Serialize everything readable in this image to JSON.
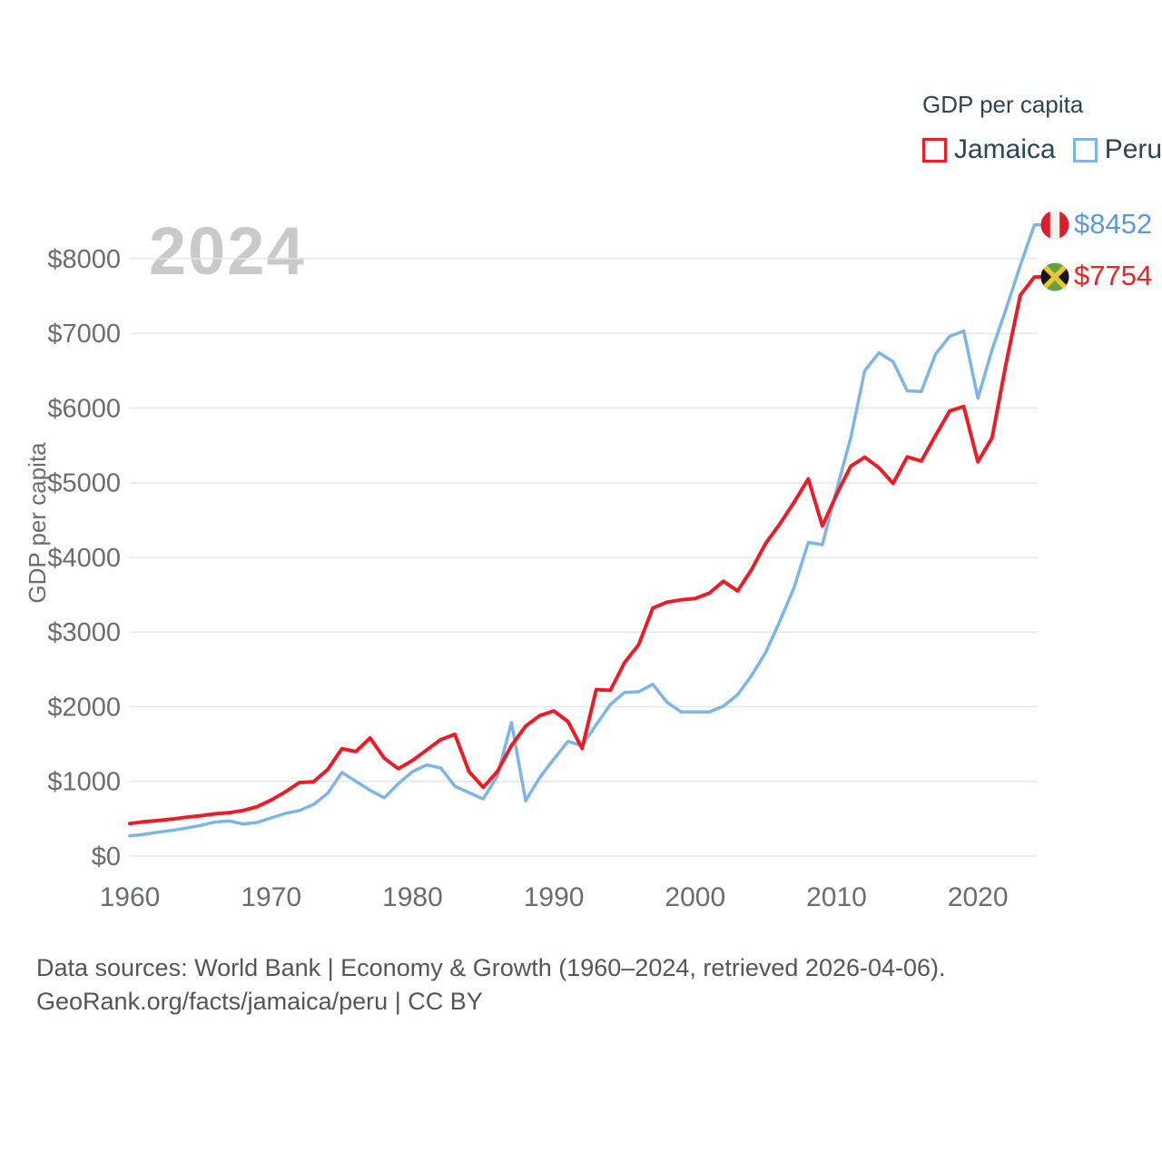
{
  "legend": {
    "title": "GDP per capita",
    "items": [
      {
        "label": "Jamaica",
        "color": "#ed1c24"
      },
      {
        "label": "Peru",
        "color": "#7cb5ec"
      }
    ]
  },
  "chart_data": {
    "type": "line",
    "title": "GDP per capita",
    "watermark": "2024",
    "ylabel": "GDP per capita",
    "grid": true,
    "legend_position": "top-right",
    "x_start": 1960,
    "x_end": 2024,
    "x_ticks": [
      1960,
      1970,
      1980,
      1990,
      2000,
      2010,
      2020
    ],
    "y_ticks": [
      {
        "value": 0,
        "label": "$0"
      },
      {
        "value": 1000,
        "label": "$1000"
      },
      {
        "value": 2000,
        "label": "$2000"
      },
      {
        "value": 3000,
        "label": "$3000"
      },
      {
        "value": 4000,
        "label": "$4000"
      },
      {
        "value": 5000,
        "label": "$5000"
      },
      {
        "value": 6000,
        "label": "$6000"
      },
      {
        "value": 7000,
        "label": "$7000"
      },
      {
        "value": 8000,
        "label": "$8000"
      }
    ],
    "ylim": [
      0,
      8700
    ],
    "series": [
      {
        "name": "Jamaica",
        "color": "#ed1c24",
        "label_color": "#ee2222",
        "end_label": "$7754",
        "end_value": 7754,
        "flag_icon": "jamaica-flag-icon",
        "values": [
          435,
          460,
          475,
          495,
          520,
          540,
          565,
          580,
          610,
          660,
          750,
          860,
          985,
          995,
          1160,
          1437,
          1400,
          1580,
          1310,
          1170,
          1280,
          1420,
          1560,
          1630,
          1130,
          920,
          1130,
          1480,
          1740,
          1880,
          1944,
          1800,
          1440,
          2230,
          2220,
          2590,
          2830,
          3320,
          3400,
          3430,
          3450,
          3520,
          3680,
          3550,
          3840,
          4190,
          4450,
          4740,
          5050,
          4420,
          4840,
          5220,
          5340,
          5200,
          4990,
          5345,
          5290,
          5630,
          5960,
          6020,
          5280,
          5600,
          6600,
          7510,
          7754
        ]
      },
      {
        "name": "Peru",
        "color": "#7cb5ec",
        "label_color": "#5b9bd5",
        "end_label": "$8452",
        "end_value": 8452,
        "flag_icon": "peru-flag-icon",
        "values": [
          270,
          290,
          320,
          345,
          375,
          410,
          455,
          470,
          430,
          450,
          510,
          570,
          610,
          690,
          840,
          1120,
          1000,
          880,
          780,
          970,
          1130,
          1220,
          1180,
          935,
          850,
          765,
          1070,
          1790,
          740,
          1050,
          1300,
          1535,
          1480,
          1760,
          2030,
          2190,
          2200,
          2300,
          2060,
          1930,
          1930,
          1930,
          2010,
          2160,
          2420,
          2730,
          3150,
          3600,
          4200,
          4170,
          4900,
          5600,
          6500,
          6740,
          6620,
          6230,
          6220,
          6720,
          6960,
          7030,
          6130,
          6780,
          7330,
          7910,
          8452
        ]
      }
    ]
  },
  "flags": {
    "jamaica": {
      "green": "#63a23d",
      "gold": "#e9c633",
      "black": "#161616"
    },
    "peru": {
      "red": "#d91e2e",
      "white": "#f5f2ee"
    }
  },
  "footer": {
    "line1": "Data sources: World Bank | Economy & Growth (1960–2024, retrieved 2026-04-06).",
    "line2": "GeoRank.org/facts/jamaica/peru | CC BY"
  }
}
